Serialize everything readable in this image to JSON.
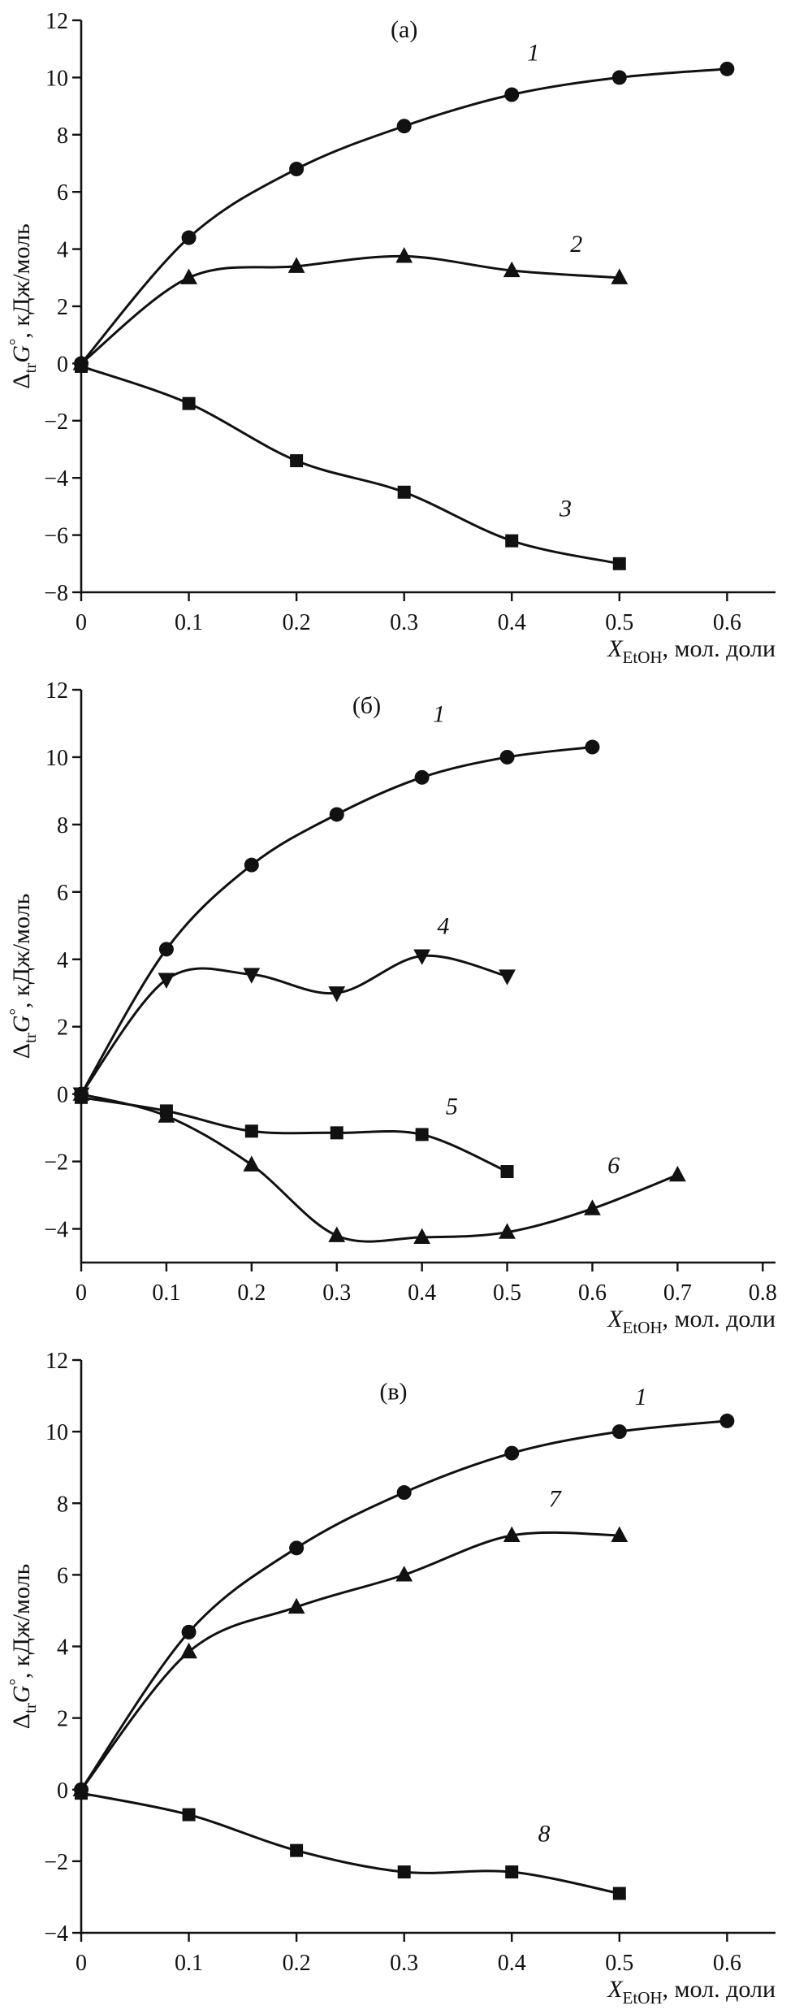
{
  "figure": {
    "background": "#ffffff",
    "ink": "#111111"
  },
  "chart_data": [
    {
      "id": "panel-a",
      "type": "line",
      "panel_label": "(а)",
      "panel_label_pos": {
        "x": 0.3,
        "y": 11.4
      },
      "xlabel_parts": [
        {
          "t": "X",
          "s": "i"
        },
        {
          "t": "EtOH",
          "s": "sub"
        },
        {
          "t": ", мол. доли",
          "s": "n"
        }
      ],
      "ylabel_parts": [
        {
          "t": "Δ",
          "s": "n"
        },
        {
          "t": "tr",
          "s": "sub"
        },
        {
          "t": "G",
          "s": "i"
        },
        {
          "t": "°",
          "s": "sup"
        },
        {
          "t": ", кДж/моль",
          "s": "n"
        }
      ],
      "xlim": [
        0,
        0.645
      ],
      "ylim": [
        -8,
        12
      ],
      "xticks": [
        {
          "v": 0,
          "label": "0"
        },
        {
          "v": 0.1,
          "label": "0.1"
        },
        {
          "v": 0.2,
          "label": "0.2"
        },
        {
          "v": 0.3,
          "label": "0.3"
        },
        {
          "v": 0.4,
          "label": "0.4"
        },
        {
          "v": 0.5,
          "label": "0.5"
        },
        {
          "v": 0.6,
          "label": "0.6"
        }
      ],
      "yticks": [
        {
          "v": -8,
          "label": "−8"
        },
        {
          "v": -6,
          "label": "−6"
        },
        {
          "v": -4,
          "label": "−4"
        },
        {
          "v": -2,
          "label": "−2"
        },
        {
          "v": 0,
          "label": "0"
        },
        {
          "v": 2,
          "label": "2"
        },
        {
          "v": 4,
          "label": "4"
        },
        {
          "v": 6,
          "label": "6"
        },
        {
          "v": 8,
          "label": "8"
        },
        {
          "v": 10,
          "label": "10"
        },
        {
          "v": 12,
          "label": "12"
        }
      ],
      "series": [
        {
          "name": "1",
          "marker": "circle",
          "x": [
            0,
            0.1,
            0.2,
            0.3,
            0.4,
            0.5,
            0.6
          ],
          "y": [
            0,
            4.4,
            6.8,
            8.3,
            9.4,
            10.0,
            10.3
          ],
          "label_pos": {
            "x": 0.42,
            "y": 10.6
          }
        },
        {
          "name": "2",
          "marker": "triangle-up",
          "x": [
            0,
            0.1,
            0.2,
            0.3,
            0.4,
            0.5
          ],
          "y": [
            0,
            3.0,
            3.4,
            3.75,
            3.25,
            3.0
          ],
          "label_pos": {
            "x": 0.46,
            "y": 3.9
          }
        },
        {
          "name": "3",
          "marker": "square",
          "x": [
            0,
            0.1,
            0.2,
            0.3,
            0.4,
            0.5
          ],
          "y": [
            -0.1,
            -1.4,
            -3.4,
            -4.5,
            -6.2,
            -7.0
          ],
          "label_pos": {
            "x": 0.45,
            "y": -5.35
          }
        }
      ]
    },
    {
      "id": "panel-b",
      "type": "line",
      "panel_label": "(б)",
      "panel_label_pos": {
        "x": 0.335,
        "y": 11.3
      },
      "xlabel_parts": [
        {
          "t": "X",
          "s": "i"
        },
        {
          "t": "EtOH",
          "s": "sub"
        },
        {
          "t": ", мол. доли",
          "s": "n"
        }
      ],
      "ylabel_parts": [
        {
          "t": "Δ",
          "s": "n"
        },
        {
          "t": "tr",
          "s": "sub"
        },
        {
          "t": "G",
          "s": "i"
        },
        {
          "t": "°",
          "s": "sup"
        },
        {
          "t": ", кДж/моль",
          "s": "n"
        }
      ],
      "xlim": [
        0,
        0.815
      ],
      "ylim": [
        -5,
        12
      ],
      "xticks": [
        {
          "v": 0,
          "label": "0"
        },
        {
          "v": 0.1,
          "label": "0.1"
        },
        {
          "v": 0.2,
          "label": "0.2"
        },
        {
          "v": 0.3,
          "label": "0.3"
        },
        {
          "v": 0.4,
          "label": "0.4"
        },
        {
          "v": 0.5,
          "label": "0.5"
        },
        {
          "v": 0.6,
          "label": "0.6"
        },
        {
          "v": 0.7,
          "label": "0.7"
        },
        {
          "v": 0.8,
          "label": "0.8"
        }
      ],
      "yticks": [
        {
          "v": -4,
          "label": "−4"
        },
        {
          "v": -2,
          "label": "−2"
        },
        {
          "v": 0,
          "label": "0"
        },
        {
          "v": 2,
          "label": "2"
        },
        {
          "v": 4,
          "label": "4"
        },
        {
          "v": 6,
          "label": "6"
        },
        {
          "v": 8,
          "label": "8"
        },
        {
          "v": 10,
          "label": "10"
        },
        {
          "v": 12,
          "label": "12"
        }
      ],
      "series": [
        {
          "name": "1",
          "marker": "circle",
          "x": [
            0,
            0.1,
            0.2,
            0.3,
            0.4,
            0.5,
            0.6
          ],
          "y": [
            0,
            4.3,
            6.8,
            8.3,
            9.4,
            10.0,
            10.3
          ],
          "label_pos": {
            "x": 0.42,
            "y": 11.05
          }
        },
        {
          "name": "4",
          "marker": "triangle-down",
          "x": [
            0,
            0.1,
            0.2,
            0.3,
            0.4,
            0.5
          ],
          "y": [
            0,
            3.4,
            3.55,
            3.0,
            4.1,
            3.5
          ],
          "label_pos": {
            "x": 0.425,
            "y": 4.75
          }
        },
        {
          "name": "5",
          "marker": "square",
          "x": [
            0,
            0.1,
            0.2,
            0.3,
            0.4,
            0.5
          ],
          "y": [
            -0.1,
            -0.5,
            -1.1,
            -1.15,
            -1.2,
            -2.3
          ],
          "label_pos": {
            "x": 0.435,
            "y": -0.6
          }
        },
        {
          "name": "6",
          "marker": "triangle-up",
          "x": [
            0,
            0.1,
            0.2,
            0.3,
            0.4,
            0.5,
            0.6,
            0.7
          ],
          "y": [
            0,
            -0.65,
            -2.1,
            -4.2,
            -4.25,
            -4.1,
            -3.4,
            -2.4
          ],
          "label_pos": {
            "x": 0.625,
            "y": -2.35
          }
        }
      ]
    },
    {
      "id": "panel-v",
      "type": "line",
      "panel_label": "(в)",
      "panel_label_pos": {
        "x": 0.29,
        "y": 10.9
      },
      "xlabel_parts": [
        {
          "t": "X",
          "s": "i"
        },
        {
          "t": "EtOH",
          "s": "sub"
        },
        {
          "t": ", мол. доли",
          "s": "n"
        }
      ],
      "ylabel_parts": [
        {
          "t": "Δ",
          "s": "n"
        },
        {
          "t": "tr",
          "s": "sub"
        },
        {
          "t": "G",
          "s": "i"
        },
        {
          "t": "°",
          "s": "sup"
        },
        {
          "t": ", кДж/моль",
          "s": "n"
        }
      ],
      "xlim": [
        0,
        0.645
      ],
      "ylim": [
        -4,
        12
      ],
      "xticks": [
        {
          "v": 0,
          "label": "0"
        },
        {
          "v": 0.1,
          "label": "0.1"
        },
        {
          "v": 0.2,
          "label": "0.2"
        },
        {
          "v": 0.3,
          "label": "0.3"
        },
        {
          "v": 0.4,
          "label": "0.4"
        },
        {
          "v": 0.5,
          "label": "0.5"
        },
        {
          "v": 0.6,
          "label": "0.6"
        }
      ],
      "yticks": [
        {
          "v": -4,
          "label": "−4"
        },
        {
          "v": -2,
          "label": "−2"
        },
        {
          "v": 0,
          "label": "0"
        },
        {
          "v": 2,
          "label": "2"
        },
        {
          "v": 4,
          "label": "4"
        },
        {
          "v": 6,
          "label": "6"
        },
        {
          "v": 8,
          "label": "8"
        },
        {
          "v": 10,
          "label": "10"
        },
        {
          "v": 12,
          "label": "12"
        }
      ],
      "series": [
        {
          "name": "1",
          "marker": "circle",
          "x": [
            0,
            0.1,
            0.2,
            0.3,
            0.4,
            0.5,
            0.6
          ],
          "y": [
            0,
            4.4,
            6.75,
            8.3,
            9.4,
            10.0,
            10.3
          ],
          "label_pos": {
            "x": 0.52,
            "y": 10.75
          }
        },
        {
          "name": "7",
          "marker": "triangle-up",
          "x": [
            0,
            0.1,
            0.2,
            0.3,
            0.4,
            0.5
          ],
          "y": [
            0,
            3.85,
            5.1,
            6.0,
            7.1,
            7.1
          ],
          "label_pos": {
            "x": 0.44,
            "y": 7.9
          }
        },
        {
          "name": "8",
          "marker": "square",
          "x": [
            0,
            0.1,
            0.2,
            0.3,
            0.4,
            0.5
          ],
          "y": [
            -0.1,
            -0.7,
            -1.7,
            -2.3,
            -2.3,
            -2.9
          ],
          "label_pos": {
            "x": 0.43,
            "y": -1.45
          }
        }
      ]
    }
  ]
}
